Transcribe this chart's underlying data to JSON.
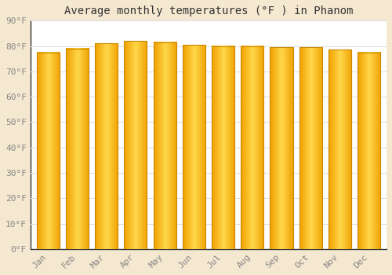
{
  "title": "Average monthly temperatures (°F ) in Phanom",
  "months": [
    "Jan",
    "Feb",
    "Mar",
    "Apr",
    "May",
    "Jun",
    "Jul",
    "Aug",
    "Sep",
    "Oct",
    "Nov",
    "Dec"
  ],
  "values": [
    77.5,
    79.0,
    81.0,
    82.0,
    81.5,
    80.5,
    80.0,
    80.0,
    79.5,
    79.5,
    78.5,
    77.5
  ],
  "bar_color_edge": "#F0A000",
  "bar_color_center": "#FFD84A",
  "bar_border_color": "#CC8800",
  "background_color": "#F5E8D0",
  "plot_bg_color": "#FFFFFF",
  "grid_color": "#DDDDDD",
  "text_color": "#888888",
  "title_color": "#333333",
  "ylim": [
    0,
    90
  ],
  "yticks": [
    0,
    10,
    20,
    30,
    40,
    50,
    60,
    70,
    80,
    90
  ],
  "title_fontsize": 10,
  "tick_fontsize": 8,
  "font_family": "monospace",
  "bar_width": 0.78,
  "gradient_steps": 50
}
